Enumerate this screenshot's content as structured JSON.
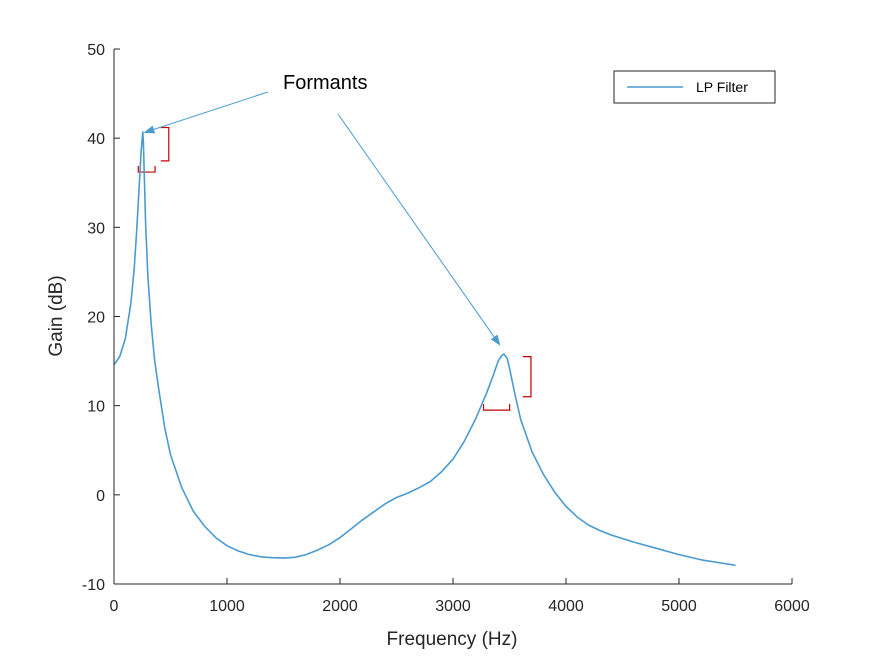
{
  "chart_data": {
    "type": "line",
    "title": "",
    "xlabel": "Frequency (Hz)",
    "ylabel": "Gain (dB)",
    "xlim": [
      0,
      6000
    ],
    "ylim": [
      -10,
      50
    ],
    "xticks": [
      0,
      1000,
      2000,
      3000,
      4000,
      5000,
      6000
    ],
    "yticks": [
      -10,
      0,
      10,
      20,
      30,
      40,
      50
    ],
    "xtick_labels": [
      "0",
      "1000",
      "2000",
      "3000",
      "4000",
      "5000",
      "6000"
    ],
    "ytick_labels": [
      "-10",
      "0",
      "10",
      "20",
      "30",
      "40",
      "50"
    ],
    "grid": false,
    "legend_position": "top-right",
    "series": [
      {
        "name": "LP Filter",
        "color": "#4a9bd0",
        "x": [
          0,
          50,
          100,
          150,
          180,
          200,
          220,
          240,
          255,
          260,
          270,
          280,
          300,
          330,
          360,
          400,
          450,
          500,
          600,
          700,
          800,
          900,
          1000,
          1100,
          1200,
          1300,
          1400,
          1500,
          1600,
          1700,
          1800,
          1900,
          2000,
          2100,
          2200,
          2300,
          2400,
          2500,
          2600,
          2700,
          2800,
          2900,
          3000,
          3100,
          3200,
          3300,
          3350,
          3400,
          3430,
          3450,
          3480,
          3500,
          3550,
          3600,
          3700,
          3800,
          3900,
          4000,
          4100,
          4200,
          4300,
          4400,
          4600,
          4800,
          5000,
          5200,
          5400,
          5500
        ],
        "y": [
          14.6,
          15.5,
          17.5,
          21.5,
          25.5,
          29.5,
          34,
          38.5,
          40.7,
          39.5,
          35,
          30.5,
          24.5,
          19,
          15,
          11.5,
          7.5,
          4.5,
          0.8,
          -1.8,
          -3.5,
          -4.8,
          -5.7,
          -6.3,
          -6.7,
          -6.95,
          -7.05,
          -7.1,
          -7.0,
          -6.7,
          -6.2,
          -5.6,
          -4.8,
          -3.8,
          -2.8,
          -1.9,
          -1.0,
          -0.3,
          0.2,
          0.8,
          1.5,
          2.6,
          4.0,
          6.0,
          8.5,
          11.5,
          13.2,
          15.0,
          15.6,
          15.8,
          15.3,
          14.2,
          11.2,
          8.4,
          4.8,
          2.3,
          0.3,
          -1.3,
          -2.5,
          -3.4,
          -4.0,
          -4.5,
          -5.3,
          -6.0,
          -6.7,
          -7.3,
          -7.7,
          -7.9
        ]
      }
    ],
    "annotations": [
      {
        "text": "Formants",
        "arrows_to": [
          {
            "x": 260,
            "y": 40.6
          },
          {
            "x": 3420,
            "y": 16.7
          }
        ]
      }
    ],
    "brackets": [
      {
        "color": "#c00000",
        "x_range": [
          215,
          485
        ],
        "y_range": [
          36.2,
          41.2
        ]
      },
      {
        "color": "#c00000",
        "x_range": [
          3270,
          3690
        ],
        "y_range": [
          9.5,
          15.5
        ]
      }
    ]
  }
}
